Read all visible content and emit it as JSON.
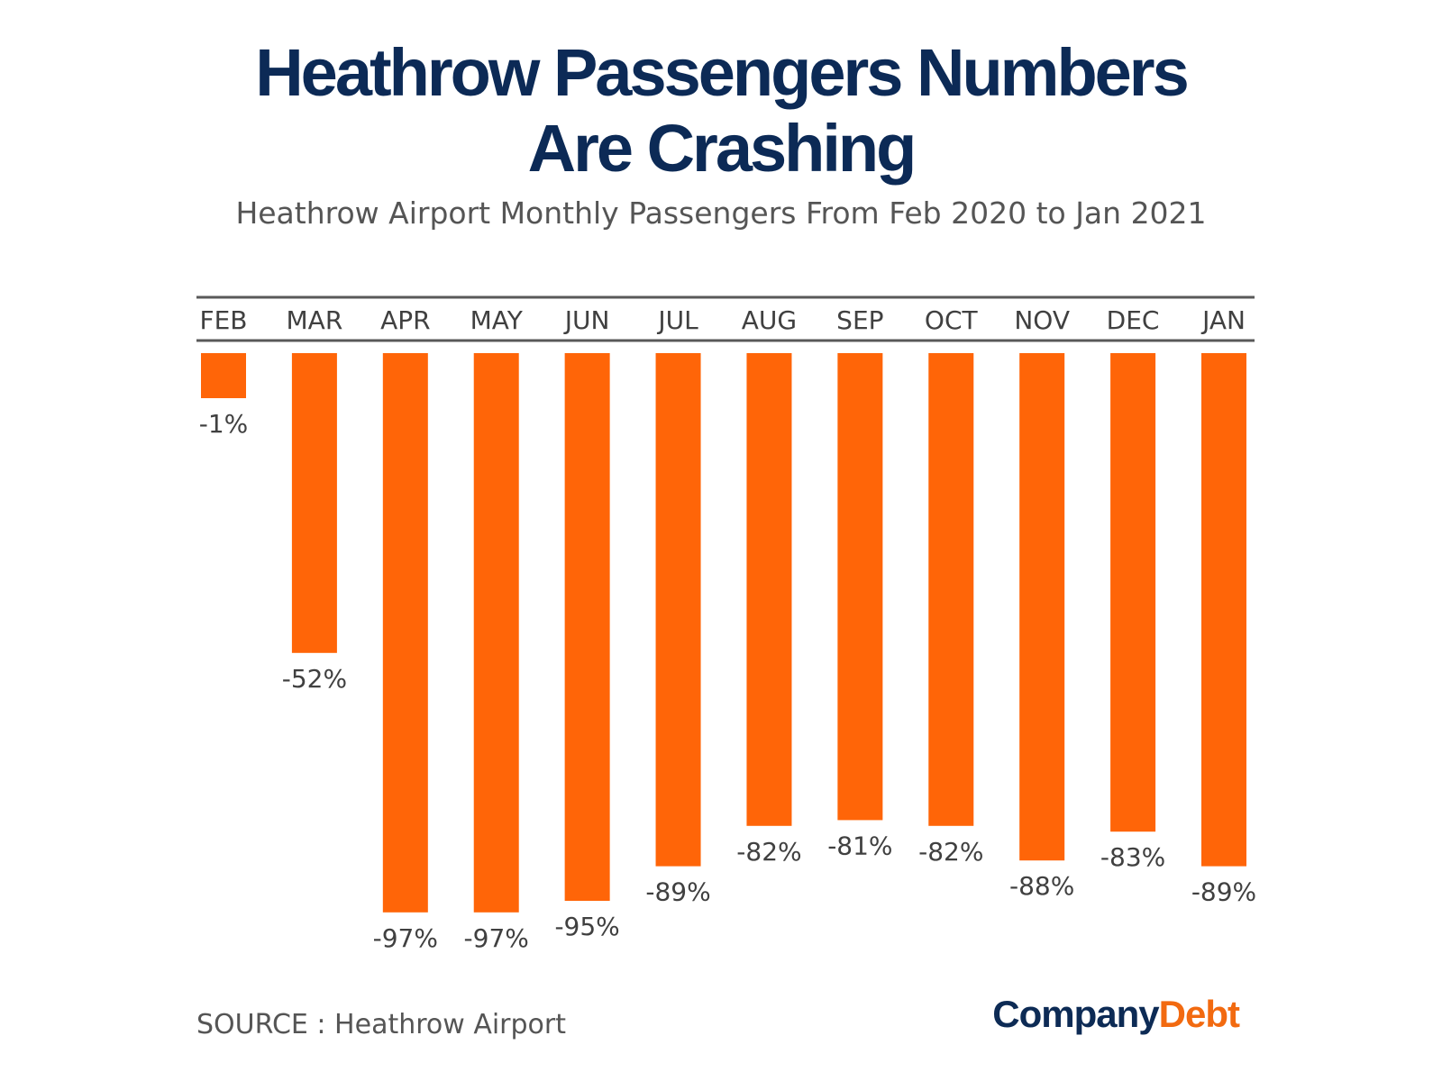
{
  "title_line1": "Heathrow Passengers Numbers",
  "title_line2": "Are Crashing",
  "subtitle": "Heathrow Airport Monthly Passengers From Feb 2020 to Jan 2021",
  "source": "SOURCE : Heathrow Airport",
  "logo": {
    "part1": "Company",
    "part2": "Debt",
    "color1": "#0d2b55",
    "color2": "#f26a10"
  },
  "colors": {
    "title": "#0c2a56",
    "subtitle": "#555555",
    "bar": "#ff6508",
    "text": "#404040",
    "rule": "#595959"
  },
  "chart_data": {
    "type": "bar",
    "orientation": "vertical-downward",
    "categories": [
      "FEB",
      "MAR",
      "APR",
      "MAY",
      "JUN",
      "JUL",
      "AUG",
      "SEP",
      "OCT",
      "NOV",
      "DEC",
      "JAN"
    ],
    "values": [
      -1,
      -52,
      -97,
      -97,
      -95,
      -89,
      -82,
      -81,
      -82,
      -88,
      -83,
      -89
    ],
    "value_labels": [
      "-1%",
      "-52%",
      "-97%",
      "-97%",
      "-95%",
      "-89%",
      "-82%",
      "-81%",
      "-82%",
      "-88%",
      "-83%",
      "-89%"
    ],
    "unit": "%",
    "grid": false,
    "legend": "none"
  }
}
